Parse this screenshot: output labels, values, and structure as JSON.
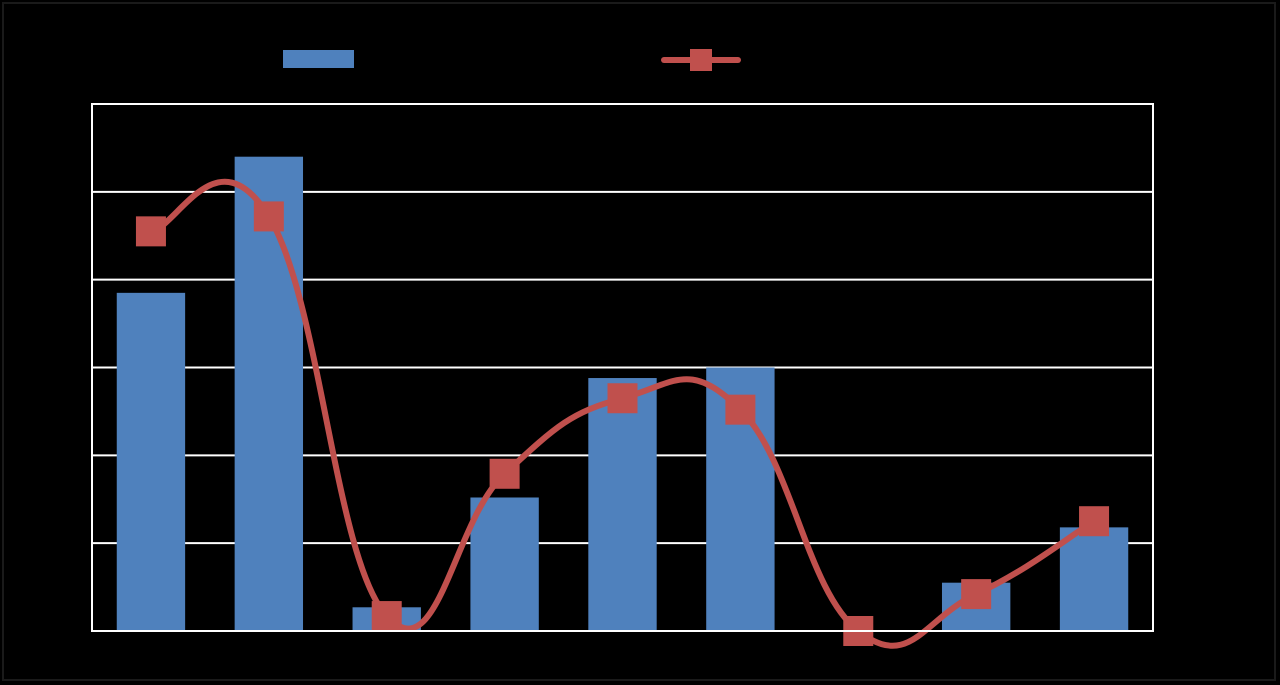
{
  "chart_data": {
    "type": "bar",
    "title": "",
    "xlabel": "",
    "ylabel": "",
    "categories": [
      "",
      "",
      "",
      "",
      "",
      "",
      "",
      "",
      ""
    ],
    "ylim": [
      0,
      6
    ],
    "gridlines": [
      1,
      2,
      3,
      4,
      5,
      6
    ],
    "grid": true,
    "legend": {
      "position": "top"
    },
    "series": [
      {
        "type": "bar",
        "color": "#4f81bd",
        "values": [
          3.85,
          5.4,
          0.27,
          1.52,
          2.88,
          3.0,
          0,
          0.55,
          1.18
        ]
      },
      {
        "type": "line",
        "smooth": true,
        "marker": "square",
        "color": "#c0504d",
        "values": [
          4.55,
          4.72,
          0.17,
          1.79,
          2.65,
          2.52,
          0.0,
          0.42,
          1.25
        ]
      }
    ]
  }
}
